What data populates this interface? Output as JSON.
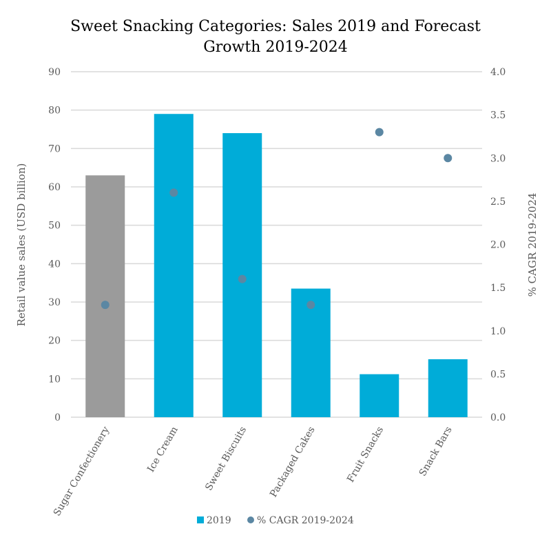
{
  "chart_data": {
    "type": "bar",
    "title": "Sweet Snacking Categories: Sales 2019 and Forecast Growth 2019-2024",
    "title_lines": [
      "Sweet Snacking Categories: Sales 2019 and Forecast",
      "Growth 2019-2024"
    ],
    "categories": [
      "Sugar Confectionery",
      "Ice Cream",
      "Sweet Biscuits",
      "Packaged Cakes",
      "Fruit Snacks",
      "Snack Bars"
    ],
    "series": [
      {
        "name": "2019",
        "type": "bar",
        "axis": "left",
        "values": [
          63,
          79,
          74,
          33.5,
          11.2,
          15.1
        ],
        "color": "#00ACD8",
        "highlight_color": "#9B9B9B",
        "highlight_index": 0
      },
      {
        "name": "% CAGR 2019-2024",
        "type": "scatter",
        "axis": "right",
        "values": [
          1.3,
          2.6,
          1.6,
          1.3,
          3.3,
          3.0
        ],
        "color": "#5B87A3"
      }
    ],
    "ylabel": "Retail value sales (USD billion)",
    "y2label": "% CAGR 2019-2024",
    "ylim": [
      0,
      90
    ],
    "y2lim": [
      0,
      4.0
    ],
    "yticks": [
      "0",
      "10",
      "20",
      "30",
      "40",
      "50",
      "60",
      "70",
      "80",
      "90"
    ],
    "y2ticks": [
      "0.0",
      "0.5",
      "1.0",
      "1.5",
      "2.0",
      "2.5",
      "3.0",
      "3.5",
      "4.0"
    ],
    "grid": true,
    "legend_position": "bottom"
  }
}
